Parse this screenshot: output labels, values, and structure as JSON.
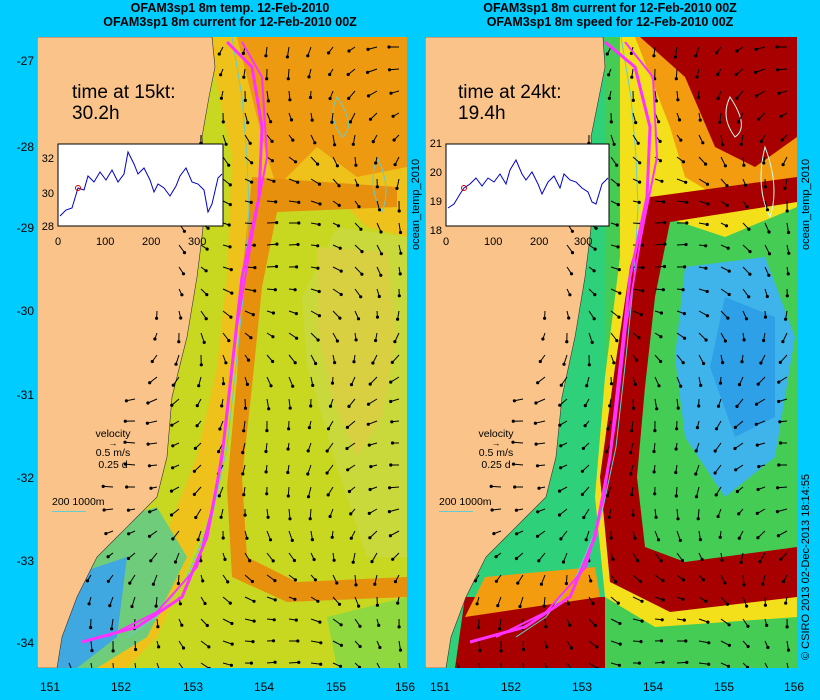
{
  "left_panel": {
    "title_line1": "OFAM3sp1 8m temp. 12-Feb-2010",
    "title_line2": "OFAM3sp1 8m current for 12-Feb-2010 00Z",
    "time_label": "time at 15kt:",
    "time_value": "30.2h",
    "inset_yticks": [
      "32",
      "30",
      "28"
    ],
    "inset_xticks": [
      "0",
      "100",
      "200",
      "300"
    ],
    "side_label": "ocean_temp_2010"
  },
  "right_panel": {
    "title_line1": "OFAM3sp1 8m current for 12-Feb-2010 00Z",
    "title_line2": "OFAM3sp1 8m speed for 12-Feb-2010 00Z",
    "time_label": "time at 24kt:",
    "time_value": "19.4h",
    "inset_yticks": [
      "21",
      "20",
      "19",
      "18"
    ],
    "inset_xticks": [
      "0",
      "100",
      "200",
      "300"
    ],
    "side_label": "ocean_temp_2010"
  },
  "legend": {
    "velocity": "velocity",
    "speed": "0.5 m/s",
    "duration": "0.25 d",
    "isobath": "200  1000m"
  },
  "axes": {
    "lat_ticks": [
      "-27",
      "-28",
      "-29",
      "-30",
      "-31",
      "-32",
      "-33",
      "-34"
    ],
    "lon_ticks_left": [
      "151",
      "152",
      "153",
      "154",
      "155",
      "156"
    ],
    "lon_ticks_right": [
      "151",
      "152",
      "153",
      "154",
      "155",
      "156"
    ]
  },
  "credit": "© CSIRO 2013   02-Dec-2013 18:14:55",
  "colors": {
    "background": "#00ccff",
    "land": "#f9c38a",
    "track": "#ff33ff",
    "isobath": "#66cccc",
    "inset_line": "#0000cc"
  }
}
